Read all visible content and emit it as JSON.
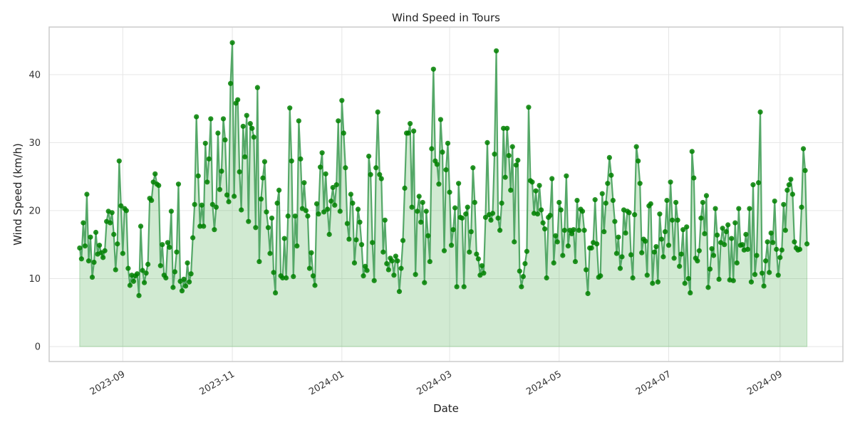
{
  "chart_data": {
    "type": "line",
    "title": "Wind Speed in Tours",
    "xlabel": "Date",
    "ylabel": "Wind Speed (km/h)",
    "x_start": "2023-08-08",
    "x_step_days": 1,
    "xlim": [
      "2023-07-22",
      "2024-10-06"
    ],
    "ylim": [
      -2.2,
      47
    ],
    "y_ticks": [
      0,
      10,
      20,
      30,
      40
    ],
    "x_ticks": [
      "2023-09-01",
      "2023-11-01",
      "2024-01-01",
      "2024-03-01",
      "2024-05-01",
      "2024-07-01",
      "2024-09-01"
    ],
    "x_tick_labels": [
      "2023-09",
      "2023-11",
      "2024-01",
      "2024-03",
      "2024-05",
      "2024-07",
      "2024-09"
    ],
    "grid": true,
    "fill_under_line": true,
    "series": [
      {
        "values": [
          14.5,
          12.9,
          18.2,
          14.8,
          22.4,
          12.6,
          16.1,
          10.2,
          12.4,
          16.8,
          13.6,
          14.9,
          13.8,
          13.1,
          14.1,
          18.4,
          19.9,
          18.2,
          19.7,
          16.5,
          11.3,
          15.1,
          27.3,
          20.7,
          13.7,
          20.3,
          20,
          11.5,
          9,
          10.5,
          9.6,
          10.4,
          10.7,
          7.5,
          17.7,
          11.2,
          9.4,
          10.8,
          12.1,
          21.8,
          21.5,
          24.2,
          25.4,
          23.9,
          23.7,
          11.9,
          15,
          10.5,
          10.1,
          15.3,
          14.6,
          19.9,
          8.7,
          11,
          13.9,
          23.9,
          9.6,
          8.2,
          9.9,
          8.9,
          12.3,
          9.5,
          10.7,
          16,
          20.9,
          33.8,
          25.1,
          17.7,
          20.8,
          17.7,
          29.9,
          24.2,
          27.6,
          33.5,
          20.9,
          17.2,
          20.5,
          31.4,
          23.1,
          25.8,
          33.5,
          30.4,
          22.3,
          21.3,
          38.7,
          44.7,
          22.1,
          35.8,
          36.3,
          25.7,
          20.1,
          32.4,
          27.9,
          34,
          18.4,
          32.8,
          32.1,
          30.8,
          17.5,
          38.1,
          12.5,
          21.7,
          24.8,
          27.2,
          19.8,
          17.5,
          13.7,
          18.9,
          10.9,
          7.9,
          21.1,
          23,
          10.4,
          10.1,
          15.9,
          10.1,
          19.2,
          35.1,
          27.3,
          10.3,
          19.2,
          14.8,
          33.2,
          27.6,
          20.3,
          24.1,
          20,
          19.2,
          11.5,
          13.8,
          10.4,
          9,
          21,
          19.5,
          26.4,
          28.5,
          19.8,
          25.4,
          20.2,
          16.5,
          21.4,
          23.4,
          20.8,
          23.8,
          33.2,
          19.9,
          36.2,
          31.4,
          26.3,
          18.1,
          15.8,
          22.4,
          21.1,
          12.3,
          15.7,
          20.2,
          18.3,
          15,
          10.4,
          11.8,
          11.2,
          28,
          25.3,
          15.3,
          9.7,
          26.3,
          34.5,
          25.3,
          24.7,
          13.9,
          18.6,
          12.2,
          11.3,
          13,
          12.6,
          10.5,
          13.3,
          12.6,
          8.1,
          11.5,
          15.6,
          23.3,
          31.4,
          31.4,
          32.8,
          20.5,
          31.7,
          10.6,
          19.9,
          22.1,
          18.3,
          21.2,
          9.4,
          19.9,
          16.3,
          12.5,
          29.1,
          40.8,
          27.3,
          26.8,
          23.9,
          33.4,
          28.6,
          14.1,
          26,
          29.9,
          22.7,
          14.9,
          17.2,
          20.4,
          8.8,
          24,
          19,
          18.9,
          8.8,
          19.5,
          20.5,
          13.9,
          16.9,
          26.3,
          21.2,
          13.6,
          12.9,
          10.5,
          11.9,
          10.8,
          19,
          30,
          19.4,
          18.6,
          19.6,
          28.3,
          43.5,
          18.9,
          17.1,
          21.1,
          32.1,
          24.9,
          32.1,
          28.1,
          23,
          29.4,
          15.4,
          26.7,
          27.4,
          11.1,
          8.8,
          10.3,
          12.2,
          14,
          35.2,
          24.4,
          24.2,
          19.6,
          22.9,
          19.5,
          23.7,
          20.1,
          18.2,
          17.3,
          10.1,
          19,
          19.3,
          24.7,
          12.3,
          16.3,
          15.4,
          21.2,
          20.1,
          13.4,
          17.1,
          25.1,
          14.8,
          17.1,
          16.6,
          17.2,
          12.5,
          21.5,
          17.1,
          20.2,
          19.9,
          17.1,
          11.3,
          7.8,
          14.5,
          14.5,
          15.3,
          21.6,
          15.1,
          10.2,
          10.4,
          22.5,
          16.9,
          21.1,
          24,
          27.8,
          25.2,
          21.5,
          18.4,
          13.7,
          16.1,
          11.5,
          13.2,
          20.1,
          16.7,
          19.9,
          19.7,
          13.5,
          10.1,
          19.4,
          29.4,
          27.3,
          24,
          13.8,
          15.8,
          15.5,
          10.5,
          20.7,
          21,
          9.3,
          13.9,
          14.7,
          9.5,
          19.5,
          15.8,
          13.2,
          16.9,
          21.5,
          14.9,
          24.2,
          18.6,
          13,
          21.2,
          18.6,
          11.8,
          13.6,
          17.2,
          9.3,
          17.6,
          10,
          7.9,
          28.7,
          24.8,
          13,
          12.6,
          14.1,
          18.9,
          21.2,
          16.6,
          22.2,
          8.7,
          11.4,
          14.4,
          13.4,
          20.3,
          16.4,
          9.9,
          15.3,
          17.4,
          15,
          16.9,
          17.9,
          9.8,
          15.9,
          9.7,
          18.2,
          12.3,
          20.3,
          14.9,
          15,
          14.2,
          16.5,
          14.3,
          20.3,
          9.5,
          23.8,
          10.6,
          13.4,
          24.1,
          34.5,
          10.8,
          8.9,
          12.6,
          15.4,
          10.9,
          16.7,
          15.3,
          21.4,
          14.3,
          10.5,
          13.1,
          14.2,
          20.9,
          17.1,
          23,
          23.8,
          24.6,
          22.4,
          15.4,
          14.5,
          14.2,
          14.3,
          20.5,
          29.1,
          25.9,
          15.1
        ]
      }
    ]
  },
  "colors": {
    "line": "#55a868",
    "marker": "#008000",
    "fill": "#4caf50",
    "grid": "#e6e6e6",
    "frame": "#cccccc"
  }
}
